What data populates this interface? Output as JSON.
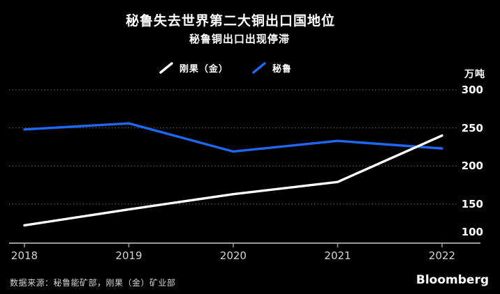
{
  "header": {
    "title": "秘鲁失去世界第二大铜出口国地位",
    "subtitle": "秘鲁铜出口出现停滞"
  },
  "footer": {
    "source": "数据来源：秘鲁能矿部，刚果（金）矿业部",
    "brand": "Bloomberg"
  },
  "chart_data": {
    "type": "line",
    "title": "秘鲁失去世界第二大铜出口国地位",
    "subtitle": "秘鲁铜出口出现停滞",
    "unit_label": "万吨",
    "x": [
      "2018",
      "2019",
      "2020",
      "2021",
      "2022"
    ],
    "series": [
      {
        "name": "刚果（金）",
        "color": "#FFFFFF",
        "values": [
          122,
          143,
          163,
          179,
          240
        ]
      },
      {
        "name": "秘鲁",
        "color": "#1F68F5",
        "values": [
          248,
          256,
          219,
          233,
          223
        ]
      }
    ],
    "yticks": [
      300,
      250,
      200,
      150,
      100
    ],
    "ylim": [
      100,
      300
    ],
    "grid": "dotted-horizontal",
    "legend_position": "top",
    "background": "#000000",
    "axis_color": "#9C9C9C",
    "gridline_color": "#6E6E6E"
  }
}
